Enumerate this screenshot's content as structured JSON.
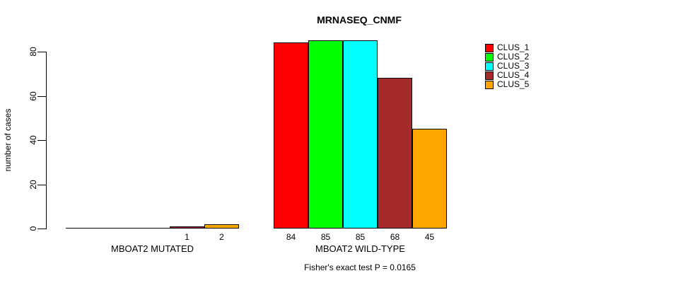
{
  "chart_data": {
    "type": "bar",
    "title": "MRNASEQ_CNMF",
    "ylabel": "number of cases",
    "xlabel": "",
    "ylim": [
      0,
      80
    ],
    "yticks": [
      0,
      20,
      40,
      60,
      80
    ],
    "grid": false,
    "legend_position": "right",
    "series": [
      {
        "name": "CLUS_1",
        "color": "#FF0000"
      },
      {
        "name": "CLUS_2",
        "color": "#00FF00"
      },
      {
        "name": "CLUS_3",
        "color": "#00FFFF"
      },
      {
        "name": "CLUS_4",
        "color": "#A52A2A"
      },
      {
        "name": "CLUS_5",
        "color": "#FFA500"
      }
    ],
    "groups": [
      {
        "label": "MBOAT2 MUTATED",
        "values": [
          0,
          0,
          0,
          1,
          2
        ]
      },
      {
        "label": "MBOAT2 WILD-TYPE",
        "values": [
          84,
          85,
          85,
          68,
          45
        ]
      }
    ],
    "bar_value_labels_shown_when": "value > 0",
    "footnote": "Fisher's exact test P = 0.0165"
  }
}
